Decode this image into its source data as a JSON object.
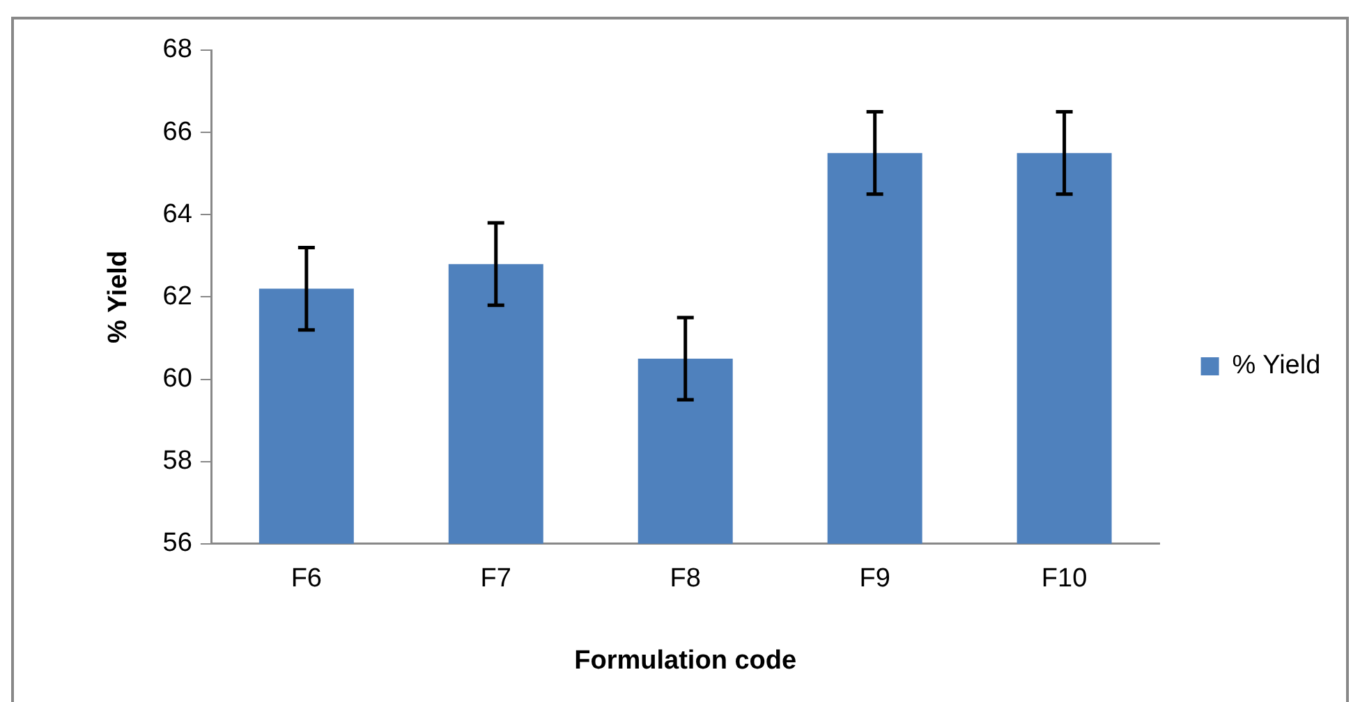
{
  "chart_data": {
    "type": "bar",
    "xlabel": "Formulation code",
    "ylabel": "% Yield",
    "categories": [
      "F6",
      "F7",
      "F8",
      "F9",
      "F10"
    ],
    "series": [
      {
        "name": "% Yield",
        "color": "#4f81bd",
        "values": [
          62.2,
          62.8,
          60.5,
          65.5,
          65.5
        ],
        "errors": [
          1.0,
          1.0,
          1.0,
          1.0,
          1.0
        ]
      }
    ],
    "ylim": [
      56,
      68
    ],
    "yticks": [
      56,
      58,
      60,
      62,
      64,
      66,
      68
    ],
    "legend": "right"
  }
}
